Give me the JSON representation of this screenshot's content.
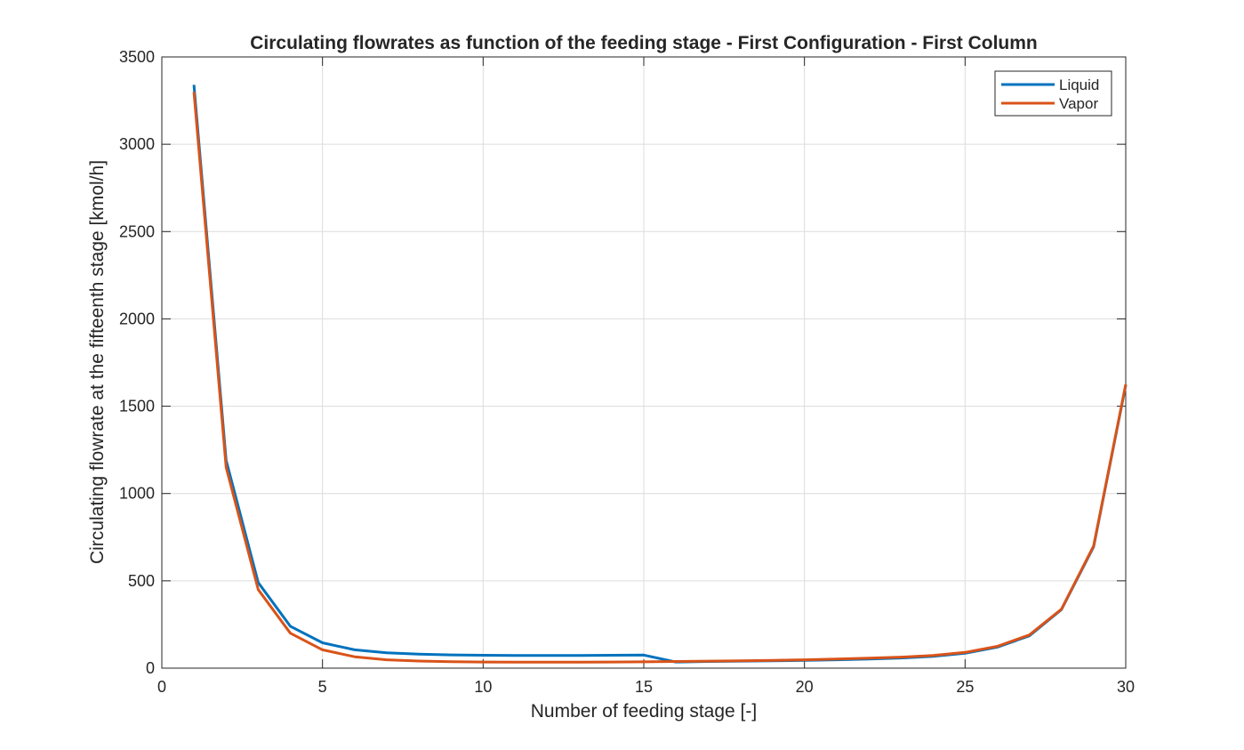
{
  "chart_data": {
    "type": "line",
    "title": "Circulating flowrates as function of the feeding stage - First Configuration - First Column",
    "xlabel": "Number of feeding stage [-]",
    "ylabel": "Circulating flowrate at the fifteenth stage [kmol/h]",
    "xlim": [
      0,
      30
    ],
    "ylim": [
      0,
      3500
    ],
    "xticks": [
      0,
      5,
      10,
      15,
      20,
      25,
      30
    ],
    "yticks": [
      0,
      500,
      1000,
      1500,
      2000,
      2500,
      3000,
      3500
    ],
    "grid": true,
    "legend_position": "top-right",
    "x": [
      1,
      2,
      3,
      4,
      5,
      6,
      7,
      8,
      9,
      10,
      11,
      12,
      13,
      14,
      15,
      16,
      17,
      18,
      19,
      20,
      21,
      22,
      23,
      24,
      25,
      26,
      27,
      28,
      29,
      30
    ],
    "series": [
      {
        "name": "Liquid",
        "color": "#0072BD",
        "values": [
          3340,
          1190,
          490,
          240,
          145,
          105,
          88,
          80,
          76,
          74,
          73,
          73,
          73,
          74,
          75,
          35,
          38,
          40,
          42,
          45,
          48,
          52,
          58,
          68,
          85,
          120,
          185,
          335,
          695,
          1620
        ]
      },
      {
        "name": "Vapor",
        "color": "#D95319",
        "values": [
          3300,
          1150,
          450,
          200,
          105,
          65,
          48,
          41,
          37,
          35,
          34,
          34,
          34,
          35,
          36,
          38,
          40,
          42,
          45,
          48,
          52,
          57,
          63,
          73,
          90,
          125,
          190,
          338,
          700,
          1625
        ]
      }
    ]
  }
}
